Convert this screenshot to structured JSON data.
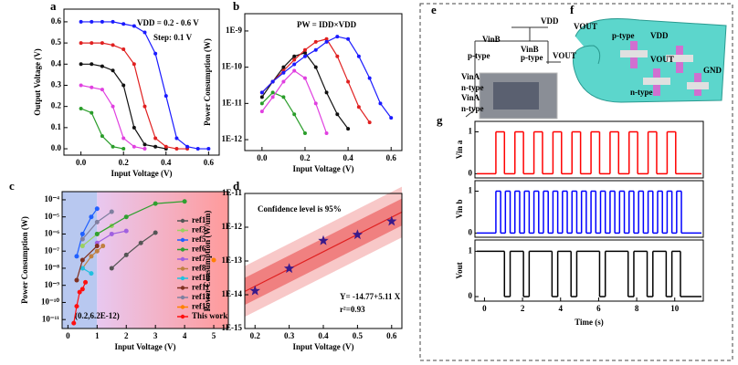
{
  "chart_data": [
    {
      "type": "line",
      "label": "a",
      "xlabel": "Input Voltage (V)",
      "ylabel": "Output Voltage (V)",
      "xlim": [
        -0.08,
        0.65
      ],
      "ylim": [
        -0.03,
        0.66
      ],
      "xticks": [
        {
          "value": 0,
          "label": "0.0"
        },
        {
          "value": 0.2,
          "label": "0.2"
        },
        {
          "value": 0.4,
          "label": "0.4"
        },
        {
          "value": 0.6,
          "label": "0.6"
        }
      ],
      "yticks": [
        {
          "value": 0,
          "label": "0.0"
        },
        {
          "value": 0.1,
          "label": "0.1"
        },
        {
          "value": 0.2,
          "label": "0.2"
        },
        {
          "value": 0.3,
          "label": "0.3"
        },
        {
          "value": 0.4,
          "label": "0.4"
        },
        {
          "value": 0.5,
          "label": "0.5"
        },
        {
          "value": 0.6,
          "label": "0.6"
        }
      ],
      "x": [
        0,
        0.05,
        0.1,
        0.15,
        0.2,
        0.25,
        0.3,
        0.35,
        0.4,
        0.45,
        0.5,
        0.55,
        0.6
      ],
      "series": [
        {
          "color": "#2a9d2a",
          "values": [
            0.19,
            0.17,
            0.06,
            0.01,
            0.0,
            null,
            null,
            null,
            null,
            null,
            null,
            null,
            null
          ]
        },
        {
          "color": "#e040e0",
          "values": [
            0.3,
            0.29,
            0.28,
            0.2,
            0.05,
            0.01,
            0.0,
            null,
            null,
            null,
            null,
            null,
            null
          ]
        },
        {
          "color": "#111111",
          "values": [
            0.4,
            0.4,
            0.39,
            0.37,
            0.3,
            0.1,
            0.02,
            0.01,
            0.0,
            null,
            null,
            null,
            null
          ]
        },
        {
          "color": "#e02020",
          "values": [
            0.5,
            0.5,
            0.5,
            0.49,
            0.47,
            0.4,
            0.2,
            0.05,
            0.01,
            0.0,
            0.0,
            null,
            null
          ]
        },
        {
          "color": "#1a1aff",
          "values": [
            0.6,
            0.6,
            0.6,
            0.6,
            0.59,
            0.58,
            0.55,
            0.45,
            0.25,
            0.05,
            0.01,
            0.0,
            0.0
          ]
        }
      ],
      "annotations": [
        "VDD = 0.2 - 0.6 V",
        "Step: 0.1 V"
      ]
    },
    {
      "type": "line",
      "label": "b",
      "xlabel": "Input Voltage (V)",
      "ylabel": "Power Consumption (W)",
      "yscale": "log",
      "xlim": [
        -0.08,
        0.65
      ],
      "ylim": [
        5e-13,
        3e-09
      ],
      "xticks": [
        {
          "value": 0,
          "label": "0.0"
        },
        {
          "value": 0.2,
          "label": "0.2"
        },
        {
          "value": 0.4,
          "label": "0.4"
        },
        {
          "value": 0.6,
          "label": "0.6"
        }
      ],
      "yticks": [
        {
          "value": 1e-12,
          "label": "1E-12"
        },
        {
          "value": 1e-11,
          "label": "1E-11"
        },
        {
          "value": 1e-10,
          "label": "1E-10"
        },
        {
          "value": 1e-09,
          "label": "1E-9"
        }
      ],
      "x": [
        0,
        0.05,
        0.1,
        0.15,
        0.2,
        0.25,
        0.3,
        0.35,
        0.4,
        0.45,
        0.5,
        0.55,
        0.6
      ],
      "series": [
        {
          "color": "#2a9d2a",
          "values": [
            1e-11,
            2e-11,
            1.5e-11,
            5e-12,
            1.5e-12,
            null,
            null,
            null,
            null,
            null,
            null,
            null,
            null
          ]
        },
        {
          "color": "#e040e0",
          "values": [
            6e-12,
            1.5e-11,
            4e-11,
            8e-11,
            5e-11,
            1e-11,
            1.5e-12,
            null,
            null,
            null,
            null,
            null,
            null
          ]
        },
        {
          "color": "#111111",
          "values": [
            1.5e-11,
            4e-11,
            1e-10,
            2e-10,
            2.5e-10,
            1e-10,
            2e-11,
            5e-12,
            2e-12,
            null,
            null,
            null,
            null
          ]
        },
        {
          "color": "#e02020",
          "values": [
            2e-11,
            4e-11,
            8e-11,
            1.6e-10,
            3e-10,
            5e-10,
            6e-10,
            2e-10,
            4e-11,
            8e-12,
            3e-12,
            null,
            null
          ]
        },
        {
          "color": "#1a1aff",
          "values": [
            2e-11,
            4e-11,
            7e-11,
            1.2e-10,
            2e-10,
            3e-10,
            5e-10,
            7e-10,
            6e-10,
            2e-10,
            5e-11,
            1e-11,
            4e-12
          ]
        }
      ],
      "annotations": [
        "PW = IDD×VDD"
      ]
    },
    {
      "type": "line",
      "label": "c",
      "xlabel": "Input Voltage (V)",
      "ylabel": "Power Consumption (W)",
      "yscale": "log",
      "xlim": [
        -0.2,
        5.5
      ],
      "ylim": [
        3e-12,
        0.0003
      ],
      "legend": "right",
      "xticks": [
        0,
        1,
        2,
        3,
        4,
        5
      ],
      "yticks": [
        {
          "value": 1e-11,
          "label": "10⁻¹¹"
        },
        {
          "value": 1e-10,
          "label": "10⁻¹⁰"
        },
        {
          "value": 1e-09,
          "label": "10⁻⁹"
        },
        {
          "value": 1e-08,
          "label": "10⁻⁸"
        },
        {
          "value": 1e-07,
          "label": "10⁻⁷"
        },
        {
          "value": 1e-06,
          "label": "10⁻⁶"
        },
        {
          "value": 1e-05,
          "label": "10⁻⁵"
        },
        {
          "value": 0.0001,
          "label": "10⁻⁴"
        }
      ],
      "series": [
        {
          "name": "ref1",
          "color": "#555555",
          "x": [
            1.5,
            2,
            2.5,
            3
          ],
          "values": [
            1e-08,
            6e-08,
            3e-07,
            1.2e-06
          ]
        },
        {
          "name": "ref3",
          "color": "#9ad060",
          "x": [
            0.5,
            1,
            1.5
          ],
          "values": [
            2e-07,
            1e-06,
            3e-06
          ]
        },
        {
          "name": "ref5",
          "color": "#2060ff",
          "x": [
            0.3,
            0.5,
            0.8,
            1
          ],
          "values": [
            5e-08,
            1e-06,
            1e-05,
            3e-05
          ]
        },
        {
          "name": "ref6",
          "color": "#30a030",
          "x": [
            1,
            2,
            3,
            4
          ],
          "values": [
            1e-06,
            1e-05,
            6e-05,
            8e-05
          ]
        },
        {
          "name": "ref7",
          "color": "#a060e0",
          "x": [
            1,
            1.5,
            2
          ],
          "values": [
            3e-07,
            1e-06,
            1.5e-06
          ]
        },
        {
          "name": "ref8",
          "color": "#c08040",
          "x": [
            0.5,
            0.8,
            1,
            1.2
          ],
          "values": [
            1e-08,
            5e-08,
            1e-07,
            2e-07
          ]
        },
        {
          "name": "ref10",
          "color": "#20c0e0",
          "x": [
            0.5,
            0.8
          ],
          "values": [
            1e-08,
            5e-09
          ]
        },
        {
          "name": "ref11",
          "color": "#803020",
          "x": [
            0.3,
            0.5,
            1
          ],
          "values": [
            2e-09,
            3e-08,
            2e-07
          ]
        },
        {
          "name": "ref14",
          "color": "#8080a0",
          "x": [
            0.5,
            1,
            1.5
          ],
          "values": [
            5e-07,
            5e-06,
            2e-05
          ]
        },
        {
          "name": "ref15",
          "color": "#ff8000",
          "x": [
            5
          ],
          "values": [
            3e-08
          ]
        },
        {
          "name": "This work",
          "color": "#ff1010",
          "x": [
            0.2,
            0.3,
            0.4,
            0.5,
            0.6
          ],
          "values": [
            6.2e-12,
            6e-11,
            4e-10,
            6e-10,
            1.5e-09
          ]
        }
      ],
      "annotations": [
        "(0.2,6.2E-12)"
      ]
    },
    {
      "type": "scatter",
      "label": "d",
      "xlabel": "Input Voltage (V)",
      "ylabel": "Power Consumption (W/um)",
      "yscale": "log",
      "xlim": [
        0.17,
        0.63
      ],
      "ylim": [
        1e-15,
        1e-11
      ],
      "xticks": [
        0.2,
        0.3,
        0.4,
        0.5,
        0.6
      ],
      "yticks": [
        {
          "value": 1e-15,
          "label": "1E-15"
        },
        {
          "value": 1e-14,
          "label": "1E-14"
        },
        {
          "value": 1e-13,
          "label": "1E-13"
        },
        {
          "value": 1e-12,
          "label": "1E-12"
        },
        {
          "value": 1e-11,
          "label": "1E-11"
        }
      ],
      "fit": {
        "intercept": -14.77,
        "slope": 5.11
      },
      "x": [
        0.2,
        0.3,
        0.4,
        0.5,
        0.6
      ],
      "series": [
        {
          "color": "#3a1a8a",
          "values": [
            1.3e-14,
            6e-14,
            4e-13,
            6e-13,
            1.5e-12
          ]
        }
      ],
      "annotations": [
        "Confidence level is 95%",
        "Y= -14.77+5.11 X",
        "r²=0.93"
      ]
    },
    {
      "type": "step",
      "label": "g",
      "ylabel": "Vin a",
      "xlim": [
        -0.5,
        11.5
      ],
      "ylim": [
        -0.1,
        1.25
      ],
      "yticks": [
        0,
        1
      ],
      "series": [
        {
          "color": "#ff0000",
          "x": [
            -0.4,
            0.6,
            1.05,
            1.6,
            2.05,
            2.6,
            3.05,
            3.6,
            4.05,
            4.6,
            5.05,
            5.6,
            6.05,
            6.6,
            7.05,
            7.6,
            8.05,
            8.6,
            9.05,
            9.6,
            10.05
          ],
          "values": [
            0,
            1,
            0,
            1,
            0,
            1,
            0,
            1,
            0,
            1,
            0,
            1,
            0,
            1,
            0,
            1,
            0,
            1,
            0,
            1,
            0
          ]
        }
      ]
    },
    {
      "type": "step",
      "ylabel": "Vin b",
      "xlim": [
        -0.5,
        11.5
      ],
      "ylim": [
        -0.1,
        1.25
      ],
      "yticks": [
        0,
        1
      ],
      "series": [
        {
          "color": "#0000ff",
          "x": [
            -0.4,
            0.6,
            0.85,
            1.1,
            1.35,
            1.6,
            1.85,
            2.1,
            2.35,
            2.6,
            2.85,
            3.1,
            3.35,
            3.6,
            3.85,
            4.1,
            4.35,
            4.6,
            4.85,
            5.1,
            5.35,
            5.6,
            5.85,
            6.1,
            6.35,
            6.6,
            6.85,
            7.1,
            7.35,
            7.6,
            7.85,
            8.1,
            8.35,
            8.6,
            8.85,
            9.1,
            9.35,
            9.6,
            9.85,
            10.1,
            10.35
          ],
          "values": [
            0,
            1,
            0,
            1,
            0,
            1,
            0,
            1,
            0,
            1,
            0,
            1,
            0,
            1,
            0,
            1,
            0,
            1,
            0,
            1,
            0,
            1,
            0,
            1,
            0,
            1,
            0,
            1,
            0,
            1,
            0,
            1,
            0,
            1,
            0,
            1,
            0,
            1,
            0,
            1,
            0
          ]
        }
      ]
    },
    {
      "type": "step",
      "ylabel": "Vout",
      "xlabel": "Time (s)",
      "xlim": [
        -0.5,
        11.5
      ],
      "ylim": [
        -0.1,
        1.25
      ],
      "yticks": [
        0,
        1
      ],
      "xticks": [
        0,
        2,
        4,
        6,
        8,
        10
      ],
      "series": [
        {
          "color": "#000000",
          "x": [
            -0.4,
            1.05,
            1.35,
            2.05,
            2.35,
            3.55,
            3.85,
            4.55,
            4.85,
            6.05,
            6.35,
            7.55,
            7.85,
            8.55,
            8.85,
            9.55,
            9.85,
            10.3
          ],
          "values": [
            1,
            0,
            1,
            0,
            1,
            0,
            1,
            0,
            1,
            0,
            1,
            0,
            1,
            0,
            1,
            0,
            1,
            0
          ]
        }
      ]
    }
  ],
  "schematic": {
    "label": "e",
    "texts": [
      "VDD",
      "VinB",
      "VinB",
      "p-type",
      "p-type",
      "VOUT",
      "VinA",
      "n-type",
      "VinA",
      "n-type"
    ]
  },
  "device": {
    "label": "f",
    "texts": [
      "VOUT",
      "p-type",
      "VDD",
      "VOUT",
      "GND",
      "n-type"
    ]
  }
}
